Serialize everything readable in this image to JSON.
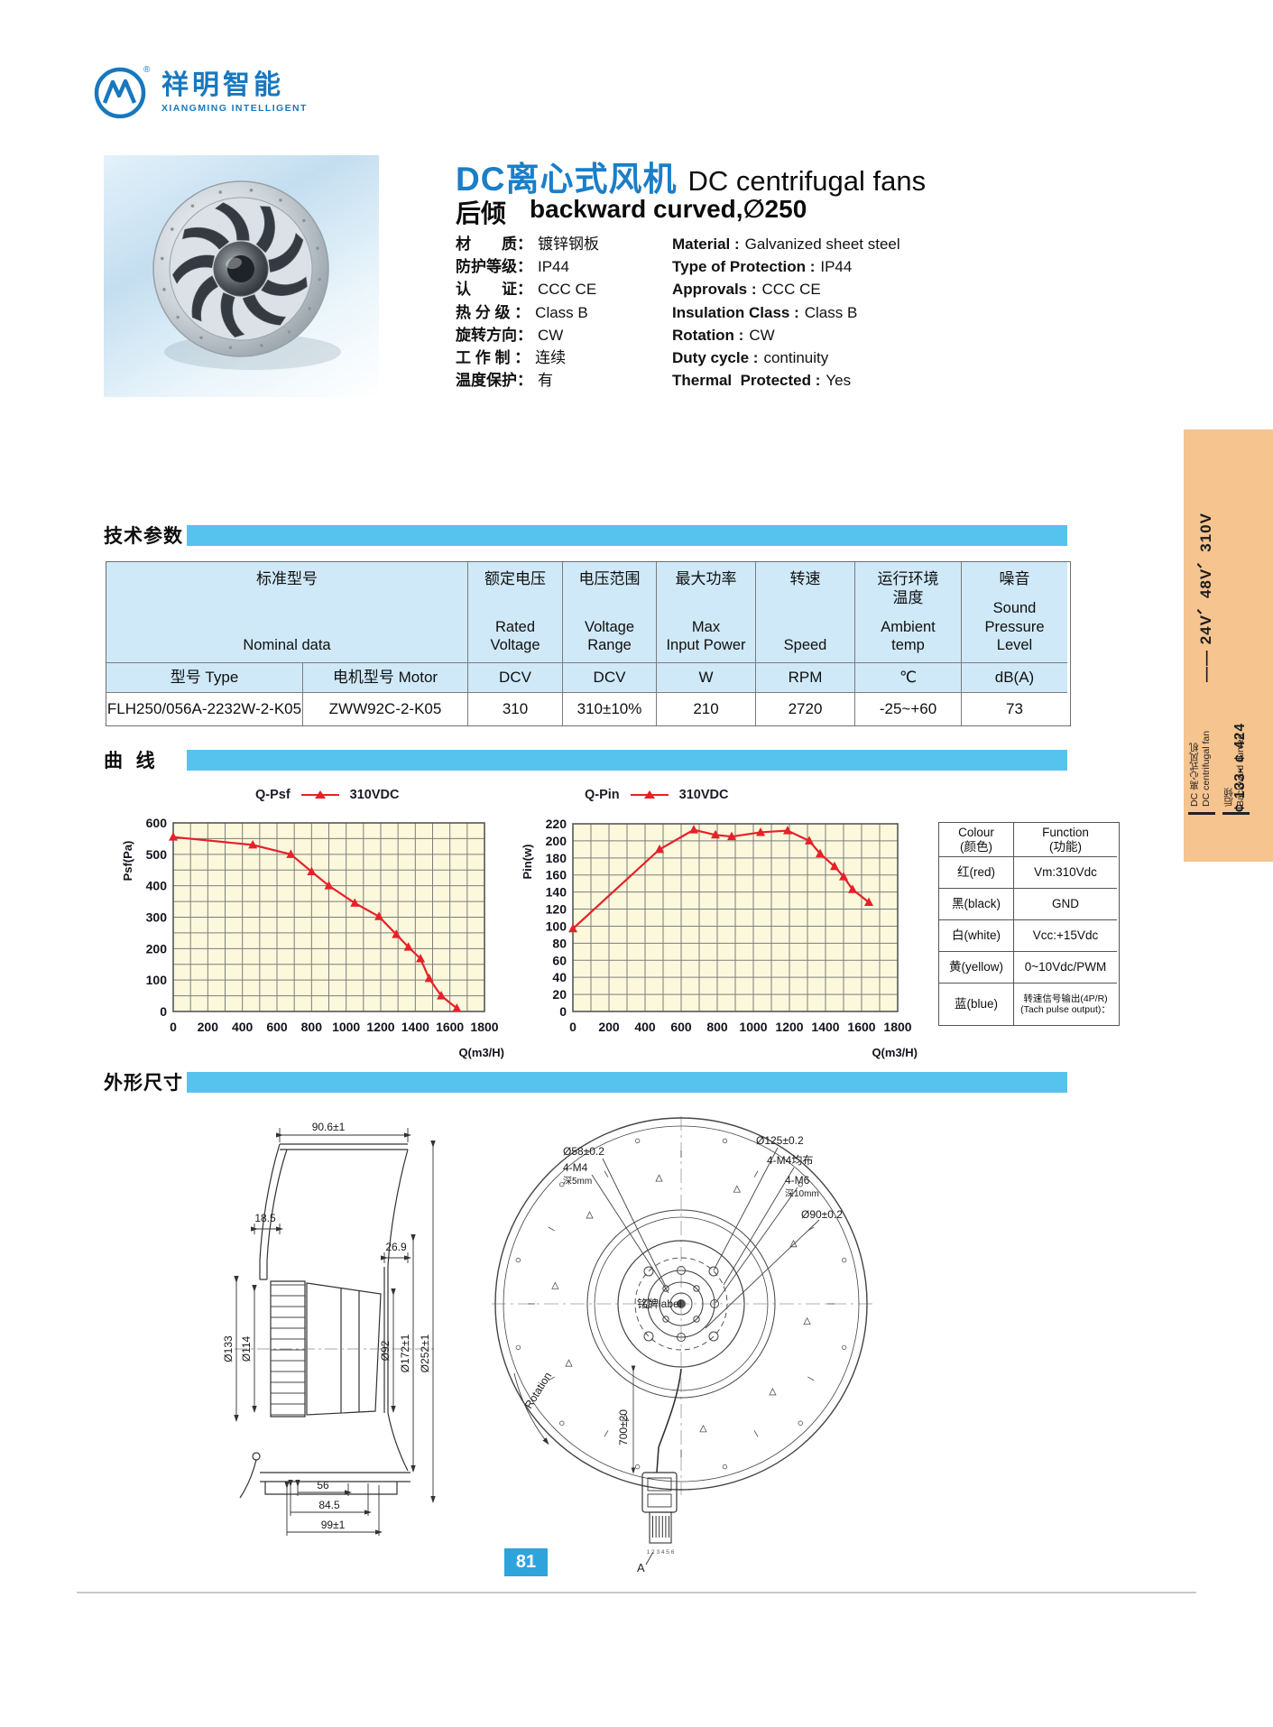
{
  "brand": {
    "name_cn": "祥明智能",
    "name_en": "XIANGMING INTELLIGENT",
    "reg": "®"
  },
  "header": {
    "title_cn": "DC离心式风机",
    "title_en": "DC centrifugal fans",
    "subtitle_cn": "后倾",
    "subtitle_en": "backward curved,∅250"
  },
  "specs": [
    {
      "cn_label": "材　　质：",
      "cn_value": "镀锌钢板",
      "en_label": "Material :",
      "en_value": "Galvanized sheet steel"
    },
    {
      "cn_label": "防护等级：",
      "cn_value": "IP44",
      "en_label": "Type of Protection :",
      "en_value": "IP44"
    },
    {
      "cn_label": "认　　证：",
      "cn_value": "CCC  CE",
      "en_label": "Approvals :",
      "en_value": "CCC  CE"
    },
    {
      "cn_label": "热 分 级 ：",
      "cn_value": "Class B",
      "en_label": "Insulation Class :",
      "en_value": "Class B"
    },
    {
      "cn_label": "旋转方向：",
      "cn_value": "CW",
      "en_label": "Rotation :",
      "en_value": "CW"
    },
    {
      "cn_label": "工 作 制 ：",
      "cn_value": "连续",
      "en_label": "Duty cycle :",
      "en_value": "continuity"
    },
    {
      "cn_label": "温度保护：",
      "cn_value": "有",
      "en_label": "Thermal  Protected :",
      "en_value": "Yes"
    }
  ],
  "sections": {
    "tech": "技术参数",
    "curves": "曲  线",
    "dims": "外形尺寸"
  },
  "tech_table": {
    "group_cn": "标准型号",
    "group_en": "Nominal  data",
    "cols": [
      {
        "cn": "额定电压",
        "en": "Rated\nVoltage",
        "unit": "DCV"
      },
      {
        "cn": "电压范围",
        "en": "Voltage\nRange",
        "unit": "DCV"
      },
      {
        "cn": "最大功率",
        "en": "Max\nInput Power",
        "unit": "W"
      },
      {
        "cn": "转速",
        "en": "Speed",
        "unit": "RPM"
      },
      {
        "cn": "运行环境\n温度",
        "en": "Ambient\ntemp",
        "unit": "℃"
      },
      {
        "cn": "噪音",
        "en": "Sound\nPressure\nLevel",
        "unit": "dB(A)"
      }
    ],
    "sub_type": "型号 Type",
    "sub_motor": "电机型号 Motor",
    "values": [
      "FLH250/056A-2232W-2-K05",
      "ZWW92C-2-K05",
      "310",
      "310±10%",
      "210",
      "2720",
      "-25~+60",
      "73"
    ]
  },
  "chart_data": [
    {
      "type": "line",
      "title": "Q-Psf",
      "xlabel": "Q(m3/H)",
      "ylabel": "Psf(Pa)",
      "xlim": [
        0,
        1800
      ],
      "ylim": [
        0,
        600
      ],
      "xticks": [
        0,
        200,
        400,
        600,
        800,
        1000,
        1200,
        1400,
        1600,
        1800
      ],
      "yticks": [
        0,
        100,
        200,
        300,
        400,
        500,
        600
      ],
      "xgrid": 100,
      "ygrid": 50,
      "grid": true,
      "legend_position": "top",
      "color": "#e62129",
      "series": [
        {
          "name": "310VDC",
          "x": [
            0,
            460,
            680,
            800,
            900,
            1050,
            1190,
            1290,
            1360,
            1430,
            1480,
            1550,
            1640
          ],
          "y": [
            555,
            530,
            500,
            445,
            400,
            345,
            302,
            245,
            205,
            168,
            105,
            50,
            10
          ]
        }
      ]
    },
    {
      "type": "line",
      "title": "Q-Pin",
      "xlabel": "Q(m3/H)",
      "ylabel": "Pin(w)",
      "xlim": [
        0,
        1800
      ],
      "ylim": [
        0,
        220
      ],
      "xticks": [
        0,
        200,
        400,
        600,
        800,
        1000,
        1200,
        1400,
        1600,
        1800
      ],
      "yticks": [
        0,
        20,
        40,
        60,
        80,
        100,
        120,
        140,
        160,
        180,
        200,
        220
      ],
      "xgrid": 100,
      "ygrid": 20,
      "grid": true,
      "legend_position": "top",
      "color": "#e62129",
      "series": [
        {
          "name": "310VDC",
          "x": [
            0,
            480,
            670,
            790,
            880,
            1040,
            1190,
            1310,
            1370,
            1450,
            1500,
            1550,
            1640
          ],
          "y": [
            97,
            190,
            213,
            207,
            205,
            210,
            212,
            200,
            185,
            170,
            158,
            143,
            128
          ]
        }
      ]
    }
  ],
  "wire_table": {
    "col_colour": "Colour\n(颜色)",
    "col_function": "Function\n(功能)",
    "rows": [
      [
        "红(red)",
        "Vm:310Vdc"
      ],
      [
        "黑(black)",
        "GND"
      ],
      [
        "白(white)",
        "Vcc:+15Vdc"
      ],
      [
        "黄(yellow)",
        "0~10Vdc/PWM"
      ],
      [
        "蓝(blue)",
        "转速信号输出(4P/R)\n(Tach pulse output)："
      ]
    ]
  },
  "sidebar": {
    "voltages": "—— 24V、48V、310V",
    "size_range": "¢ 133- ¢ 424",
    "cat1_cn": "DC 离心式风机",
    "cat1_en": "DC centrifugal fan",
    "cat2_cn": "后倾",
    "cat2_en": "Backward curved"
  },
  "dims_left": {
    "top_width": "90.6±1",
    "d18": "18.5",
    "d26": "26.9",
    "d133": "Ø133",
    "d114": "Ø114",
    "d92": "Ø92",
    "d172": "Ø172±1",
    "d252": "Ø252±1",
    "b56": "56",
    "b84": "84.5",
    "b99": "99±1"
  },
  "dims_right": {
    "d58": "Ø58±0.2",
    "m4": "4-M4",
    "m4d": "深5mm",
    "d125": "Ø125±0.2",
    "m4b": "4-M4均布",
    "m6": "4-M6",
    "m6d": "深10mm",
    "d90": "Ø90±0.2",
    "nameplate": "铭牌label",
    "rotation": "Rotation",
    "wire_len": "700±20",
    "pins": "1 2 3 4 5 6",
    "conn": "A"
  },
  "footer": {
    "page": "81"
  },
  "colors": {
    "accent_blue": "#1878be",
    "bar_blue": "#55c3ee",
    "table_header_blue": "#cfe9f8",
    "chart_bg": "#fcf8dc",
    "curve_red": "#e62129",
    "sidebar_orange": "#f6c48f",
    "pagenum_blue": "#2fa3dc"
  }
}
